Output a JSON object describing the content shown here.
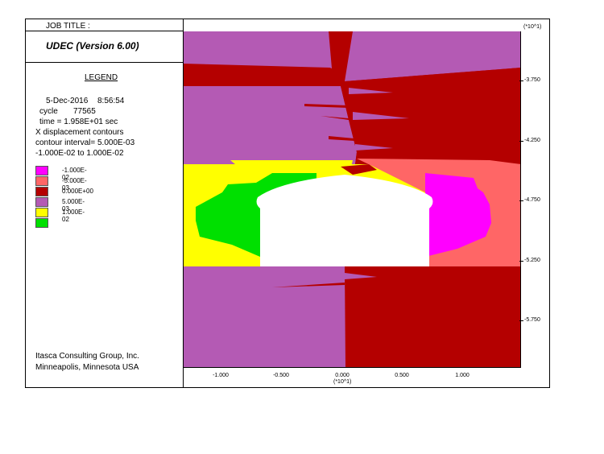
{
  "header": {
    "job_title": "JOB TITLE :",
    "units_top": "(*10^1)"
  },
  "program": {
    "name": "UDEC (Version 6.00)"
  },
  "legend": {
    "title": "LEGEND",
    "date": "5-Dec-2016",
    "clock": "8:56:54",
    "cycle_label": "cycle",
    "cycle_value": "77565",
    "time_line": "time  =  1.958E+01 sec",
    "contour_title": "X displacement contours",
    "interval_line": "contour interval= 5.000E-03",
    "range_line": "-1.000E-02 to  1.000E-02",
    "items": [
      {
        "label": "-1.000E-02",
        "color": "#ff00ff"
      },
      {
        "label": "-5.000E-03",
        "color": "#ff6666"
      },
      {
        "label": "0.000E+00",
        "color": "#b40000"
      },
      {
        "label": "5.000E-03",
        "color": "#b45ab4"
      },
      {
        "label": "1.000E-02",
        "color": "#ffff00"
      },
      {
        "label": "",
        "color": "#00e000"
      }
    ]
  },
  "footer": {
    "company": "Itasca Consulting Group, Inc.",
    "location": "Minneapolis, Minnesota  USA"
  },
  "axes": {
    "x_ticks": [
      "-1.000",
      "-0.500",
      "0.000",
      "0.500",
      "1.000"
    ],
    "x_unit": "(*10^1)",
    "y_ticks": [
      "-3.750",
      "-4.250",
      "-4.750",
      "-5.250",
      "-5.750"
    ]
  }
}
